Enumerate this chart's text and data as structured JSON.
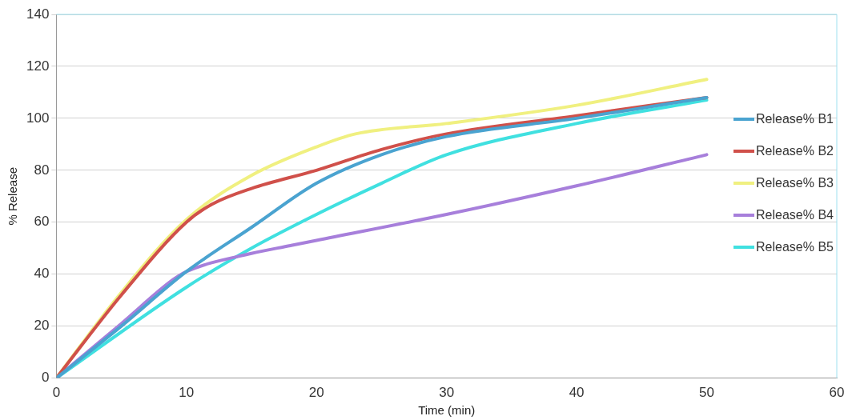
{
  "chart_data": {
    "type": "line",
    "xlabel": "Time (min)",
    "ylabel": "% Release",
    "xlim": [
      0,
      60
    ],
    "xticks": [
      0,
      10,
      20,
      30,
      40,
      50,
      60
    ],
    "ylim": [
      0,
      140
    ],
    "yticks": [
      0,
      20,
      40,
      60,
      80,
      100,
      120,
      140
    ],
    "grid": "y",
    "legend": "right",
    "marker": "none",
    "line_style": "solid",
    "series": [
      {
        "name": "Release%  B1",
        "color": "#4aa3d0",
        "x": [
          0,
          5,
          10,
          15,
          20,
          25,
          30,
          40,
          50
        ],
        "values": [
          0,
          20,
          41,
          58,
          75,
          86,
          93,
          100,
          108
        ]
      },
      {
        "name": "Release%  B2",
        "color": "#d0504a",
        "x": [
          0,
          5,
          10,
          12,
          15,
          20,
          25,
          30,
          40,
          50
        ],
        "values": [
          0,
          32,
          60,
          67,
          73,
          80,
          88,
          94,
          101,
          108
        ]
      },
      {
        "name": "Release%  B3",
        "color": "#f0f080",
        "x": [
          0,
          5,
          10,
          15,
          20,
          23,
          30,
          40,
          50
        ],
        "values": [
          0,
          33,
          61,
          78,
          89,
          94,
          98,
          105,
          115
        ]
      },
      {
        "name": "Release%  B4",
        "color": "#a77fdb",
        "x": [
          0,
          5,
          9,
          10,
          15,
          18,
          20,
          30,
          40,
          50
        ],
        "values": [
          0,
          21,
          38,
          41,
          48,
          51,
          53,
          63,
          74,
          86
        ]
      },
      {
        "name": "Release%  B5",
        "color": "#40e0e0",
        "x": [
          0,
          10,
          15,
          20,
          25,
          30,
          40,
          50
        ],
        "values": [
          0,
          35,
          50,
          63,
          75,
          86,
          98,
          107
        ]
      }
    ]
  }
}
